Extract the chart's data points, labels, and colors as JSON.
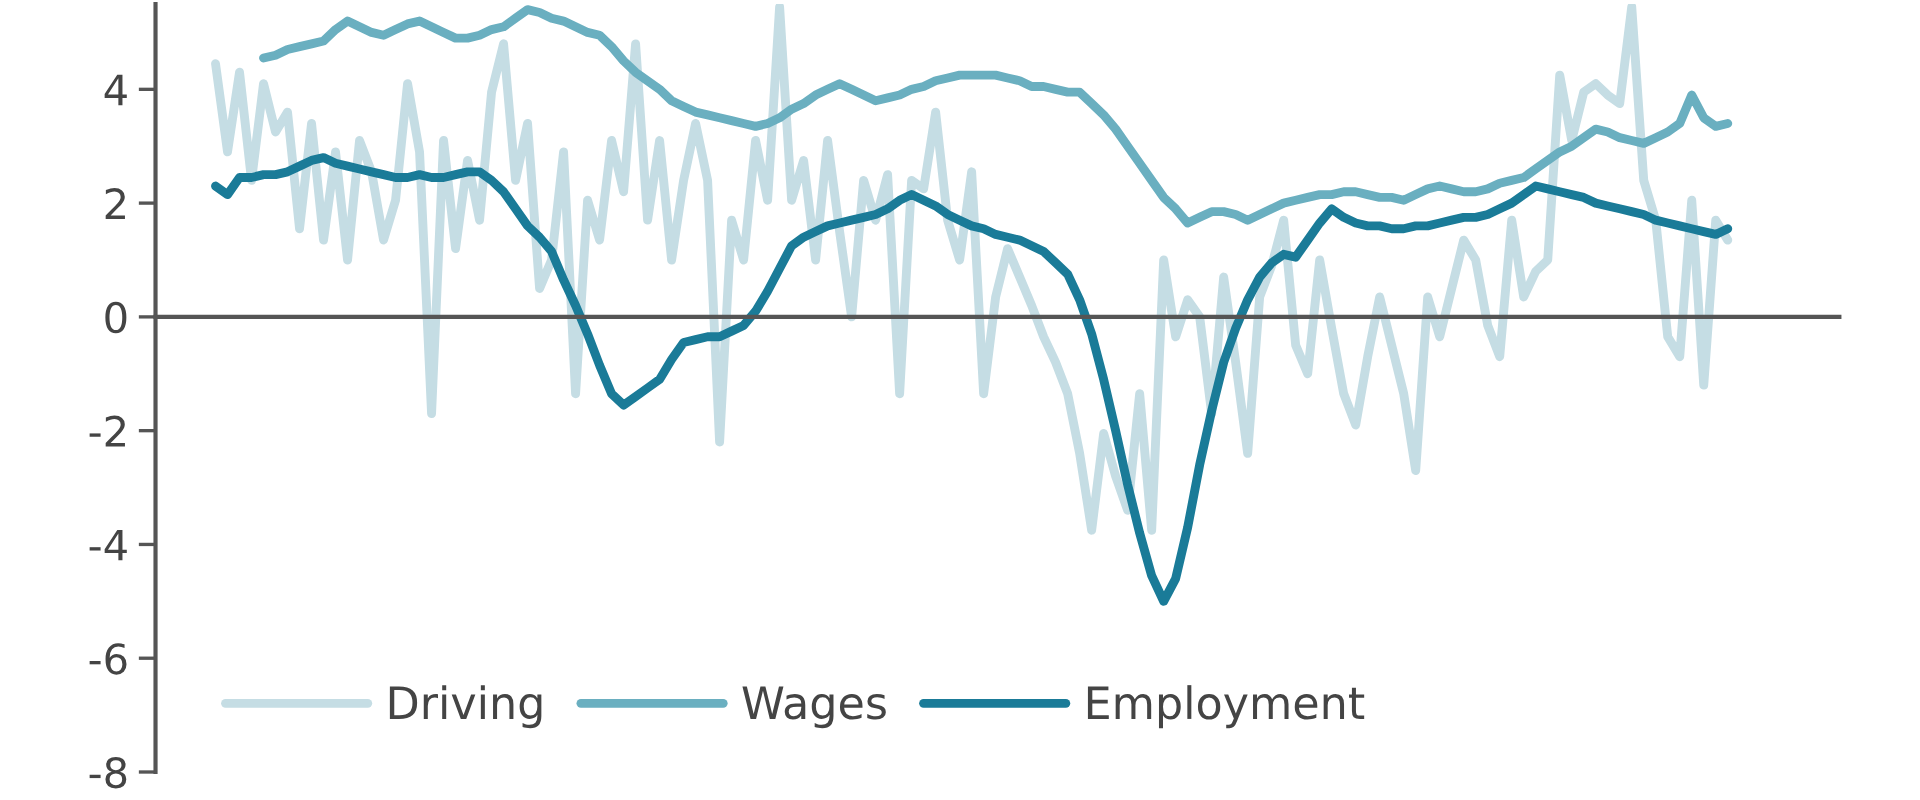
{
  "chart_data": {
    "type": "line",
    "categories": [
      null,
      null,
      null,
      null,
      null,
      null,
      null,
      null,
      null,
      null,
      null,
      null,
      null,
      null,
      null,
      null,
      null,
      null,
      null,
      null,
      null,
      null,
      null,
      null,
      null,
      null,
      null,
      null,
      null,
      null,
      null,
      null,
      null,
      null,
      null,
      null,
      null,
      null,
      null,
      null,
      null,
      null,
      null,
      null,
      null,
      null,
      null,
      null,
      null,
      null,
      null,
      null,
      null,
      null,
      null,
      null,
      null,
      null,
      null,
      null,
      null,
      null,
      null,
      null,
      null,
      null,
      null,
      null,
      null,
      null,
      null,
      null,
      null,
      null,
      null,
      null,
      null,
      null,
      null,
      null,
      null,
      null,
      null,
      null,
      null,
      null,
      null,
      null,
      null,
      null,
      null,
      null,
      null,
      null,
      null,
      null,
      null,
      null,
      null,
      null,
      null,
      null,
      null,
      null,
      null,
      null,
      null,
      null,
      null,
      null,
      null,
      null,
      null,
      null,
      null,
      null,
      null,
      null,
      null,
      null,
      null,
      null,
      null,
      null,
      null,
      null,
      null
    ],
    "ylim": [
      -8,
      5.5
    ],
    "yticks": [
      -8,
      -6,
      -4,
      -2,
      0,
      2,
      4
    ],
    "tick_labels": "y",
    "legend": "bottom",
    "series": [
      {
        "name": "Driving",
        "color": "#c5dde4",
        "values": [
          4.45,
          2.9,
          4.3,
          2.4,
          4.1,
          3.25,
          3.6,
          1.55,
          3.4,
          1.35,
          2.9,
          1.0,
          3.1,
          2.55,
          1.35,
          2.05,
          4.1,
          2.9,
          -1.7,
          3.1,
          1.2,
          2.75,
          1.7,
          3.95,
          4.8,
          2.4,
          3.4,
          0.5,
          1.0,
          2.9,
          -1.35,
          2.05,
          1.35,
          3.1,
          2.2,
          4.8,
          1.7,
          3.1,
          1.0,
          2.4,
          3.4,
          2.4,
          -2.2,
          1.7,
          1.0,
          3.1,
          2.05,
          5.45,
          2.05,
          2.75,
          1.0,
          3.1,
          1.5,
          0,
          2.4,
          1.7,
          2.5,
          -1.35,
          2.4,
          2.25,
          3.6,
          1.7,
          1.0,
          2.55,
          -1.35,
          0.35,
          1.2,
          0.7,
          0.2,
          -0.35,
          -0.8,
          -1.35,
          -2.4,
          -3.75,
          -2.05,
          -2.8,
          -3.4,
          -1.35,
          -3.75,
          1.0,
          -0.35,
          0.3,
          0,
          -1.7,
          0.7,
          -0.8,
          -2.4,
          0.35,
          0.9,
          1.7,
          -0.5,
          -1.0,
          1.0,
          -0.2,
          -1.35,
          -1.9,
          -0.7,
          0.35,
          -0.5,
          -1.35,
          -2.7,
          0.35,
          -0.35,
          0.5,
          1.35,
          1.0,
          -0.15,
          -0.7,
          1.7,
          0.35,
          0.8,
          1.0,
          4.25,
          3.1,
          3.95,
          4.1,
          3.9,
          3.75,
          5.45,
          2.4,
          1.7,
          -0.35,
          -0.7,
          2.05,
          -1.2,
          1.7,
          1.35
        ]
      },
      {
        "name": "Wages",
        "color": "#6aafc0",
        "values": [
          null,
          null,
          null,
          null,
          4.55,
          4.6,
          4.7,
          4.75,
          4.8,
          4.85,
          5.05,
          5.2,
          5.1,
          5.0,
          4.95,
          5.05,
          5.15,
          5.2,
          5.1,
          5.0,
          4.9,
          4.9,
          4.95,
          5.05,
          5.1,
          5.25,
          5.4,
          5.35,
          5.25,
          5.2,
          5.1,
          5.0,
          4.95,
          4.75,
          4.5,
          4.3,
          4.15,
          4.0,
          3.8,
          3.7,
          3.6,
          3.55,
          3.5,
          3.45,
          3.4,
          3.35,
          3.4,
          3.5,
          3.65,
          3.75,
          3.9,
          4.0,
          4.1,
          4.0,
          3.9,
          3.8,
          3.85,
          3.9,
          4.0,
          4.05,
          4.15,
          4.2,
          4.25,
          4.25,
          4.25,
          4.25,
          4.2,
          4.15,
          4.05,
          4.05,
          4.0,
          3.95,
          3.95,
          3.75,
          3.55,
          3.3,
          3.0,
          2.7,
          2.4,
          2.1,
          1.9,
          1.65,
          1.75,
          1.85,
          1.85,
          1.8,
          1.7,
          1.8,
          1.9,
          2.0,
          2.05,
          2.1,
          2.15,
          2.15,
          2.2,
          2.2,
          2.15,
          2.1,
          2.1,
          2.05,
          2.15,
          2.25,
          2.3,
          2.25,
          2.2,
          2.2,
          2.25,
          2.35,
          2.4,
          2.45,
          2.6,
          2.75,
          2.9,
          3.0,
          3.15,
          3.3,
          3.25,
          3.15,
          3.1,
          3.05,
          3.15,
          3.25,
          3.4,
          3.9,
          3.5,
          3.35,
          3.4
        ]
      },
      {
        "name": "Employment",
        "color": "#1a7b98",
        "values": [
          2.3,
          2.15,
          2.45,
          2.45,
          2.5,
          2.5,
          2.55,
          2.65,
          2.75,
          2.8,
          2.7,
          2.65,
          2.6,
          2.55,
          2.5,
          2.45,
          2.45,
          2.5,
          2.45,
          2.45,
          2.5,
          2.55,
          2.55,
          2.4,
          2.2,
          1.9,
          1.6,
          1.4,
          1.15,
          0.65,
          0.2,
          -0.3,
          -0.85,
          -1.35,
          -1.55,
          -1.4,
          -1.25,
          -1.1,
          -0.75,
          -0.45,
          -0.4,
          -0.35,
          -0.35,
          -0.25,
          -0.15,
          0.1,
          0.45,
          0.85,
          1.25,
          1.4,
          1.5,
          1.6,
          1.65,
          1.7,
          1.75,
          1.8,
          1.9,
          2.05,
          2.15,
          2.05,
          1.95,
          1.8,
          1.7,
          1.6,
          1.55,
          1.45,
          1.4,
          1.35,
          1.25,
          1.15,
          0.95,
          0.75,
          0.3,
          -0.3,
          -1.1,
          -2.0,
          -2.95,
          -3.8,
          -4.55,
          -5.0,
          -4.6,
          -3.7,
          -2.6,
          -1.65,
          -0.8,
          -0.2,
          0.3,
          0.7,
          0.95,
          1.1,
          1.05,
          1.35,
          1.65,
          1.9,
          1.75,
          1.65,
          1.6,
          1.6,
          1.55,
          1.55,
          1.6,
          1.6,
          1.65,
          1.7,
          1.75,
          1.75,
          1.8,
          1.9,
          2.0,
          2.15,
          2.3,
          2.25,
          2.2,
          2.15,
          2.1,
          2.0,
          1.95,
          1.9,
          1.85,
          1.8,
          1.7,
          1.65,
          1.6,
          1.55,
          1.5,
          1.45,
          1.55
        ]
      }
    ]
  }
}
